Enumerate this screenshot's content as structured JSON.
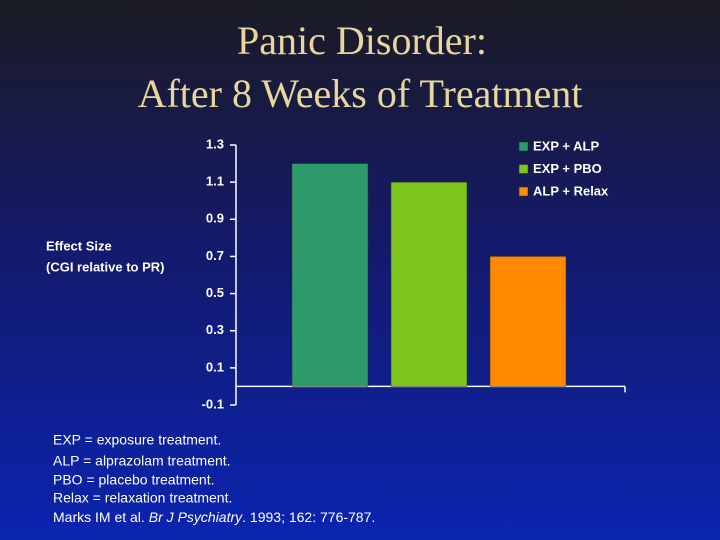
{
  "chart_data": {
    "type": "bar",
    "title": [
      "Panic Disorder:",
      "After 8 Weeks of Treatment"
    ],
    "ylabel": [
      "Effect Size",
      "(CGI relative to PR)"
    ],
    "categories": [
      null
    ],
    "series": [
      {
        "name": "EXP + ALP",
        "color": "#2f9a6a",
        "values": [
          1.2
        ]
      },
      {
        "name": "EXP + PBO",
        "color": "#7cc51c",
        "values": [
          1.1
        ]
      },
      {
        "name": "ALP + Relax",
        "color": "#ff8a00",
        "values": [
          0.7
        ]
      }
    ],
    "ylim": [
      -0.1,
      1.3
    ],
    "yticks": [
      -0.1,
      0.1,
      0.3,
      0.5,
      0.7,
      0.9,
      1.1,
      1.3
    ],
    "legend": "top-right",
    "footnotes": [
      "EXP = exposure treatment.",
      "ALP =  alprazolam treatment.",
      "PBO = placebo treatment.",
      "Relax = relaxation treatment."
    ],
    "citation": {
      "authors": "Marks IM et al.",
      "journal": "Br J Psychiatry",
      "details": ". 1993; 162: 776-787."
    }
  }
}
